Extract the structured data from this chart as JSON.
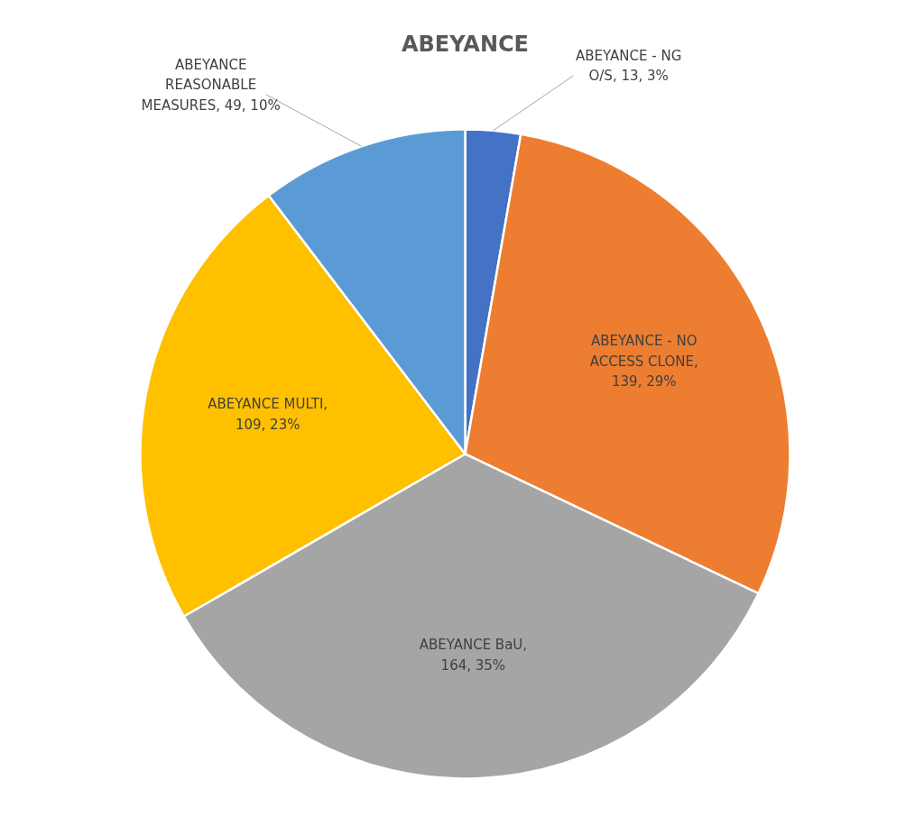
{
  "chart_data": {
    "type": "pie",
    "title": "ABEYANCE",
    "categories": [
      "ABEYANCE - NG O/S",
      "ABEYANCE - NO ACCESS CLONE",
      "ABEYANCE BaU",
      "ABEYANCE MULTI",
      "ABEYANCE REASONABLE MEASURES"
    ],
    "values": [
      13,
      139,
      164,
      109,
      49
    ],
    "value_labels": [
      ", 13, 3%",
      ", 139, 29%",
      ", 164, 35%",
      ", 109, 23%",
      ", 49, 10%"
    ],
    "colors": [
      "#4472c4",
      "#ed7d31",
      "#a5a5a5",
      "#ffc000",
      "#5b9bd5"
    ]
  }
}
